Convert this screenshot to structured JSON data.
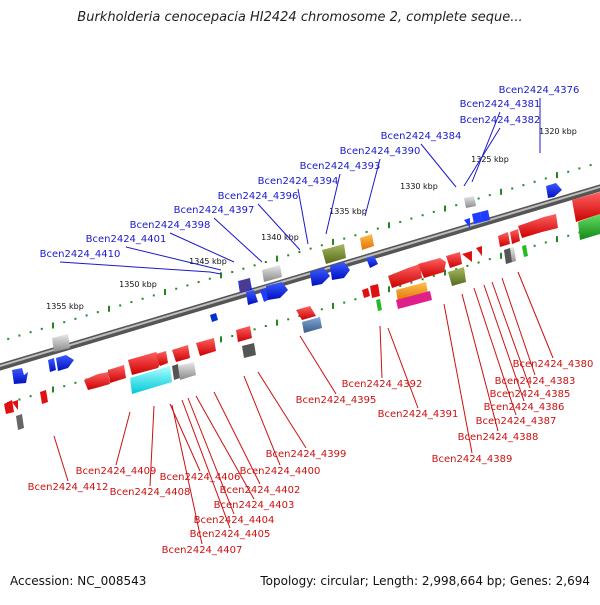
{
  "title": "Burkholderia cenocepacia HI2424 chromosome 2, complete seque...",
  "footer": {
    "accession": "Accession: NC_008543",
    "topology": "Topology: circular; Length: 2,998,664 bp; Genes: 2,694"
  },
  "colors": {
    "forward_label": "#1a1acc",
    "reverse_label": "#cc1111",
    "backbone": "#7a7a7a",
    "tick": "#228822"
  },
  "scale_ticks": [
    "1320 kbp",
    "1325 kbp",
    "1330 kbp",
    "1335 kbp",
    "1340 kbp",
    "1345 kbp",
    "1350 kbp",
    "1355 kbp"
  ],
  "forward_genes": [
    "Bcen2424_4376",
    "Bcen2424_4381",
    "Bcen2424_4382",
    "Bcen2424_4384",
    "Bcen2424_4390",
    "Bcen2424_4393",
    "Bcen2424_4394",
    "Bcen2424_4396",
    "Bcen2424_4397",
    "Bcen2424_4398",
    "Bcen2424_4401",
    "Bcen2424_4410"
  ],
  "reverse_genes": [
    "Bcen2424_4380",
    "Bcen2424_4383",
    "Bcen2424_4385",
    "Bcen2424_4386",
    "Bcen2424_4387",
    "Bcen2424_4388",
    "Bcen2424_4389",
    "Bcen2424_4391",
    "Bcen2424_4392",
    "Bcen2424_4395",
    "Bcen2424_4399",
    "Bcen2424_4400",
    "Bcen2424_4402",
    "Bcen2424_4403",
    "Bcen2424_4404",
    "Bcen2424_4405",
    "Bcen2424_4406",
    "Bcen2424_4407",
    "Bcen2424_4408",
    "Bcen2424_4409",
    "Bcen2424_4412"
  ]
}
